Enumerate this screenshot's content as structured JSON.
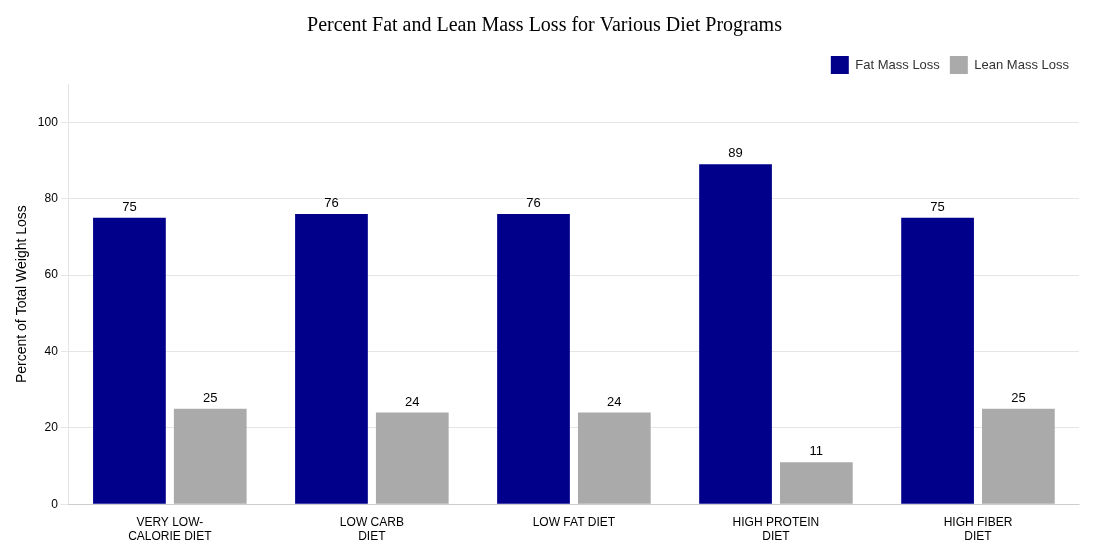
{
  "chart_data": {
    "type": "bar",
    "title": "Percent Fat and Lean Mass Loss for Various Diet Programs",
    "ylabel": "Percent of Total Weight Loss",
    "categories": [
      "VERY LOW-\nCALORIE DIET",
      "LOW CARB\nDIET",
      "LOW FAT DIET",
      "HIGH PROTEIN\nDIET",
      "HIGH FIBER\nDIET"
    ],
    "series": [
      {
        "name": "Fat Mass Loss",
        "color": "#00008B",
        "values": [
          75,
          76,
          76,
          89,
          75
        ]
      },
      {
        "name": "Lean Mass Loss",
        "color": "#AAAAAA",
        "values": [
          25,
          24,
          24,
          11,
          25
        ]
      }
    ],
    "ylim": [
      0,
      110
    ],
    "yticks": [
      0,
      20,
      40,
      60,
      80,
      100
    ],
    "grid": true,
    "legend": "upper right",
    "data_labels": true
  }
}
